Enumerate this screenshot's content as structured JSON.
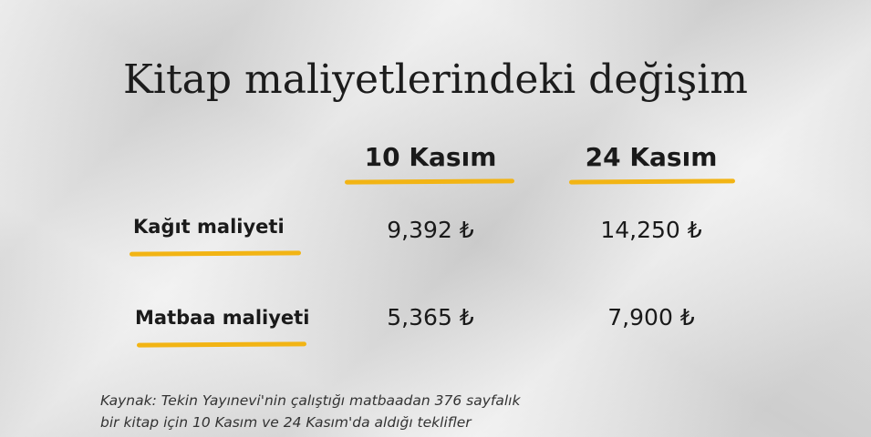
{
  "title": "Kitap maliyetlerindeki değişim",
  "colors": {
    "underline": "#f2b414",
    "background": "#dcdcdc",
    "text": "#1a1a1a"
  },
  "chart_data": {
    "type": "table",
    "title": "Kitap maliyetlerindeki değişim",
    "columns": [
      "10 Kasım",
      "24 Kasım"
    ],
    "rows": [
      {
        "label": "Kağıt maliyeti",
        "values": [
          "9,392 ₺",
          "14,250 ₺"
        ]
      },
      {
        "label": "Matbaa maliyeti",
        "values": [
          "5,365 ₺",
          "7,900 ₺"
        ]
      }
    ],
    "source": [
      "Kaynak: Tekin Yayınevi'nin çalıştığı matbaadan 376 sayfalık",
      "bir kitap için 10 Kasım ve 24 Kasım'da aldığı teklifler"
    ]
  }
}
